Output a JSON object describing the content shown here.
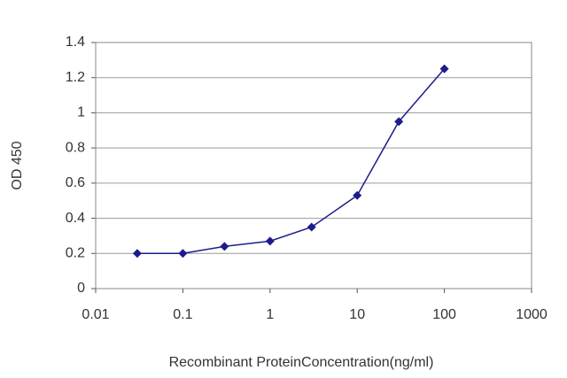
{
  "chart_data": {
    "type": "line",
    "xlabel": "Recombinant ProteinConcentration(ng/ml)",
    "ylabel": "OD 450",
    "x": [
      0.03,
      0.1,
      0.3,
      1,
      3,
      10,
      30,
      100
    ],
    "values": [
      0.2,
      0.2,
      0.24,
      0.27,
      0.35,
      0.53,
      0.95,
      1.25
    ],
    "color": "#1c1c8c",
    "xscale": "log",
    "xlim": [
      0.01,
      1000
    ],
    "xticks": [
      0.01,
      0.1,
      1,
      10,
      100,
      1000
    ],
    "ylim": [
      0,
      1.4
    ],
    "yticks": [
      0,
      0.2,
      0.4,
      0.6,
      0.8,
      1,
      1.2,
      1.4
    ],
    "grid": true
  }
}
